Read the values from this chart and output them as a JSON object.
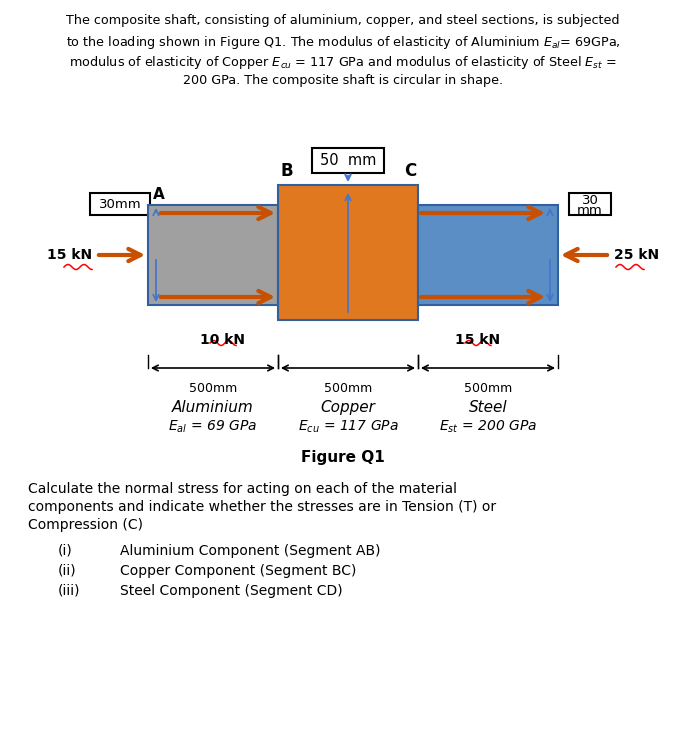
{
  "fig_width": 6.86,
  "fig_height": 7.51,
  "dpi": 100,
  "bg_color": "#ffffff",
  "al_color": "#a0a0a0",
  "cu_color": "#e07820",
  "st_color": "#5b8ec4",
  "arrow_color": "#c85000",
  "blue_arrow_color": "#4477cc",
  "al_label": "Aluminium",
  "al_modulus": "$E_{al}$ = 69 GPa",
  "cu_label": "Copper",
  "cu_modulus": "$E_{cu}$ = 117 GPa",
  "st_label": "Steel",
  "st_modulus": "$E_{st}$ = 200 GPa",
  "figure_label": "Figure Q1",
  "question_text_line1": "Calculate the normal stress for acting on each of the material",
  "question_text_line2": "components and indicate whether the stresses are in Tension (T) or",
  "question_text_line3": "Compression (C)"
}
